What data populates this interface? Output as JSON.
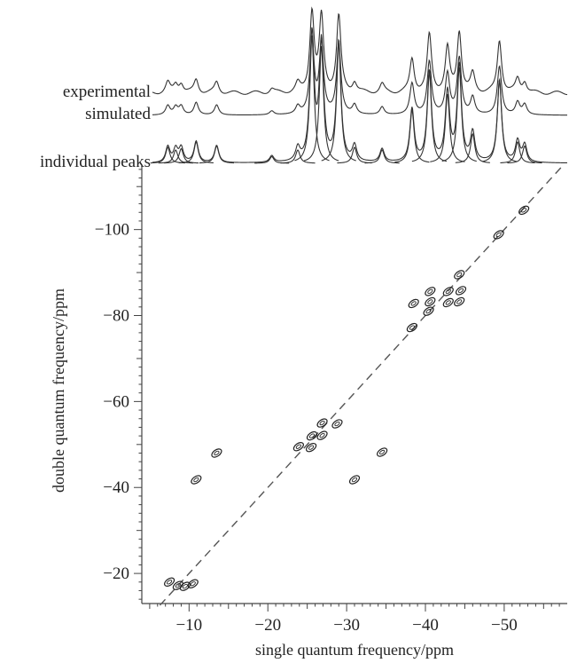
{
  "chart_data": {
    "type": "scatter",
    "title": "",
    "xlabel": "single quantum frequency/ppm",
    "ylabel": "double quantum frequency/ppm",
    "xlim": [
      -4,
      -58
    ],
    "ylim": [
      -13,
      -115
    ],
    "x_ticks": [
      -10,
      -20,
      -30,
      -40,
      -50
    ],
    "y_ticks": [
      -20,
      -40,
      -60,
      -80,
      -100
    ],
    "diagonal": {
      "style": "dashed",
      "slope": 2,
      "description": "y = 2x"
    },
    "traces": [
      {
        "name": "experimental",
        "baseline_offset": 0
      },
      {
        "name": "simulated",
        "baseline_offset": 1
      },
      {
        "name": "individual peaks",
        "baseline_offset": 2
      }
    ],
    "peaks_1d": [
      {
        "x": -7.3,
        "h": 0.12
      },
      {
        "x": -8.3,
        "h": 0.1
      },
      {
        "x": -9.0,
        "h": 0.11
      },
      {
        "x": -10.9,
        "h": 0.16
      },
      {
        "x": -13.5,
        "h": 0.13
      },
      {
        "x": -20.5,
        "h": 0.05
      },
      {
        "x": -23.8,
        "h": 0.1
      },
      {
        "x": -25.6,
        "h": 0.95
      },
      {
        "x": -26.8,
        "h": 0.88
      },
      {
        "x": -29.0,
        "h": 0.9
      },
      {
        "x": -31.0,
        "h": 0.12
      },
      {
        "x": -34.5,
        "h": 0.1
      },
      {
        "x": -38.3,
        "h": 0.4
      },
      {
        "x": -40.5,
        "h": 0.68
      },
      {
        "x": -42.8,
        "h": 0.52
      },
      {
        "x": -44.3,
        "h": 0.72
      },
      {
        "x": -46.0,
        "h": 0.22
      },
      {
        "x": -49.4,
        "h": 0.62
      },
      {
        "x": -51.7,
        "h": 0.16
      },
      {
        "x": -52.6,
        "h": 0.13
      }
    ],
    "cross_peaks": [
      {
        "x": -7.5,
        "y": -18.0
      },
      {
        "x": -8.6,
        "y": -17.2
      },
      {
        "x": -9.5,
        "y": -17.0
      },
      {
        "x": -10.5,
        "y": -17.6
      },
      {
        "x": -10.9,
        "y": -41.8
      },
      {
        "x": -13.5,
        "y": -48.0
      },
      {
        "x": -23.9,
        "y": -49.5
      },
      {
        "x": -25.5,
        "y": -49.3
      },
      {
        "x": -25.6,
        "y": -52.0
      },
      {
        "x": -26.9,
        "y": -52.1
      },
      {
        "x": -26.9,
        "y": -55.0
      },
      {
        "x": -28.8,
        "y": -54.8
      },
      {
        "x": -31.0,
        "y": -41.8
      },
      {
        "x": -34.5,
        "y": -48.2
      },
      {
        "x": -38.3,
        "y": -77.2
      },
      {
        "x": -38.5,
        "y": -82.8
      },
      {
        "x": -40.4,
        "y": -81.0
      },
      {
        "x": -40.6,
        "y": -83.2
      },
      {
        "x": -40.6,
        "y": -85.6
      },
      {
        "x": -42.9,
        "y": -83.0
      },
      {
        "x": -42.9,
        "y": -85.6
      },
      {
        "x": -44.3,
        "y": -83.2
      },
      {
        "x": -44.5,
        "y": -85.8
      },
      {
        "x": -44.3,
        "y": -89.5
      },
      {
        "x": -49.3,
        "y": -98.8
      },
      {
        "x": -52.5,
        "y": -104.5
      }
    ]
  }
}
